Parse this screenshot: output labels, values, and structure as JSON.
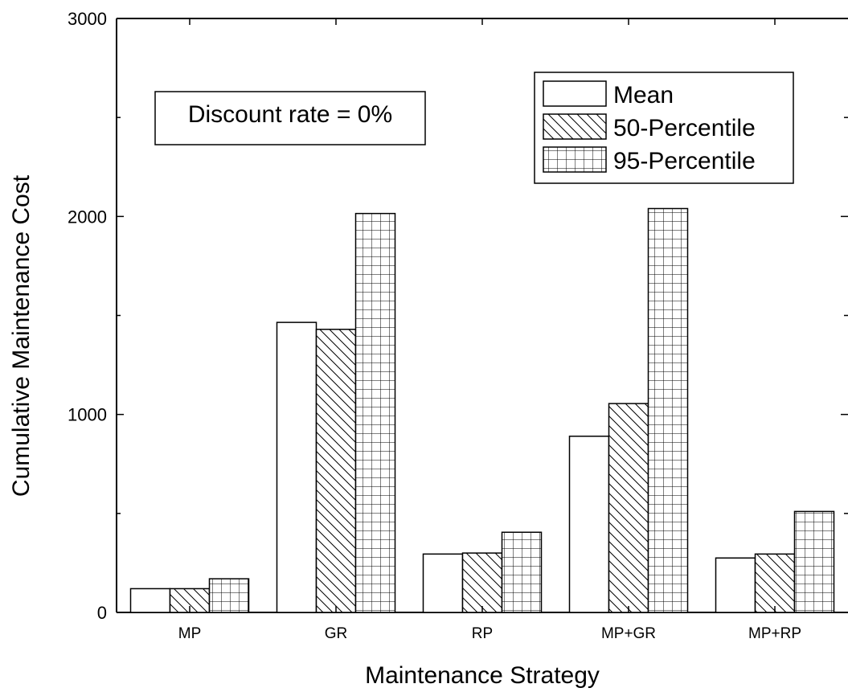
{
  "chart_data": {
    "type": "bar",
    "xlabel": "Maintenance Strategy",
    "ylabel": "Cumulative Maintenance Cost",
    "ylim": [
      0,
      3000
    ],
    "yticks": [
      0,
      1000,
      2000,
      3000
    ],
    "grid": false,
    "legend_position": "top-right",
    "categories": [
      "MP",
      "GR",
      "RP",
      "MP+GR",
      "MP+RP"
    ],
    "series": [
      {
        "name": "Mean",
        "pattern": "none",
        "values": [
          120,
          1465,
          295,
          890,
          275
        ]
      },
      {
        "name": "50-Percentile",
        "pattern": "diagonal-hatch",
        "values": [
          120,
          1430,
          300,
          1055,
          295
        ]
      },
      {
        "name": "95-Percentile",
        "pattern": "grid-hatch",
        "values": [
          170,
          2015,
          405,
          2040,
          510
        ]
      }
    ],
    "annotation": "Discount rate = 0%",
    "colors": {
      "stroke": "#000000",
      "fill": "#ffffff"
    }
  }
}
